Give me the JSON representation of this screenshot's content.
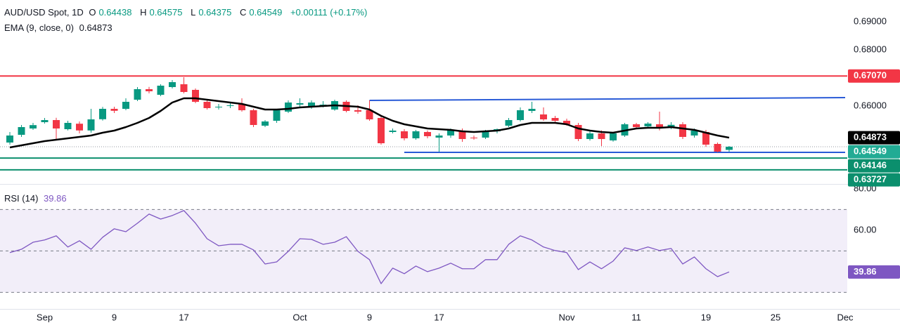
{
  "chart_data": [
    {
      "type": "candlestick",
      "header": {
        "symbol": "AUD/USD Spot, 1D",
        "labels": [
          "O",
          "H",
          "L",
          "C"
        ],
        "change": "+0.00111 (+0.17%)"
      },
      "categories": [
        null,
        null,
        null,
        "Sep",
        null,
        null,
        null,
        null,
        null,
        "9",
        null,
        null,
        null,
        null,
        null,
        "17",
        null,
        null,
        null,
        null,
        null,
        null,
        null,
        null,
        null,
        "Oct",
        null,
        null,
        null,
        null,
        null,
        "9",
        null,
        null,
        null,
        null,
        null,
        "17",
        null,
        null,
        null,
        null,
        null,
        null,
        null,
        null,
        null,
        null,
        "Nov",
        null,
        null,
        null,
        null,
        null,
        "11",
        null,
        null,
        null,
        null,
        null,
        "19",
        null,
        null,
        null,
        null,
        null,
        "25",
        null,
        null,
        null,
        null,
        null,
        "Dec"
      ],
      "open": [
        0.647,
        0.64975,
        0.652,
        0.65425,
        0.655,
        0.65175,
        0.6537,
        0.6513,
        0.6553,
        0.659,
        0.659,
        0.66225,
        0.666,
        0.664,
        0.66675,
        0.66775,
        0.66575,
        0.6615,
        0.6595,
        0.66,
        0.66075,
        0.6585,
        0.653,
        0.65475,
        0.658,
        0.6605,
        0.6595,
        0.66,
        0.65875,
        0.6615,
        0.6585,
        0.6585,
        0.65575,
        0.65075,
        0.651,
        0.6485,
        0.65075,
        0.64875,
        0.6495,
        0.65125,
        0.64875,
        0.64875,
        0.651,
        0.653,
        0.655,
        0.65825,
        0.657,
        0.65575,
        0.65475,
        0.65325,
        0.64825,
        0.65025,
        0.64775,
        0.6495,
        0.6535,
        0.65275,
        0.6535,
        0.6525,
        0.6535,
        0.6495,
        0.65075,
        0.6465,
        0.64438,
        null,
        null,
        null,
        null,
        null,
        null,
        null,
        null,
        null,
        null
      ],
      "high": [
        0.65075,
        0.65325,
        0.654,
        0.65575,
        0.6558,
        0.65475,
        0.6545,
        0.659,
        0.6597,
        0.65975,
        0.66275,
        0.66675,
        0.6668,
        0.66775,
        0.66925,
        0.67025,
        0.66625,
        0.66225,
        0.66075,
        0.66125,
        0.66275,
        0.659,
        0.655,
        0.659,
        0.662,
        0.66275,
        0.662,
        0.66175,
        0.66225,
        0.662,
        0.66025,
        0.662,
        0.65625,
        0.652,
        0.65175,
        0.6515,
        0.6513,
        0.65025,
        0.652,
        0.652,
        0.6495,
        0.6515,
        0.652,
        0.65575,
        0.6595,
        0.6615,
        0.6595,
        0.6565,
        0.6555,
        0.654,
        0.651,
        0.6513,
        0.65075,
        0.654,
        0.654,
        0.65425,
        0.658,
        0.65425,
        0.65425,
        0.652,
        0.6515,
        0.647,
        0.64575,
        null,
        null,
        null,
        null,
        null,
        null,
        null,
        null,
        null,
        null
      ],
      "low": [
        0.64625,
        0.649,
        0.6515,
        0.65375,
        0.64825,
        0.6513,
        0.65025,
        0.6505,
        0.6548,
        0.6575,
        0.6585,
        0.66175,
        0.6645,
        0.6635,
        0.66625,
        0.6645,
        0.661,
        0.65875,
        0.65875,
        0.65925,
        0.658,
        0.6525,
        0.6525,
        0.654,
        0.6575,
        0.65975,
        0.659,
        0.6595,
        0.6583,
        0.65775,
        0.65725,
        0.65475,
        0.64625,
        0.65025,
        0.64775,
        0.648,
        0.6485,
        0.64375,
        0.6487,
        0.64725,
        0.648,
        0.64825,
        0.65025,
        0.6525,
        0.6545,
        0.6575,
        0.65475,
        0.654,
        0.653,
        0.6475,
        0.6477,
        0.64575,
        0.6473,
        0.649,
        0.652,
        0.652,
        0.6513,
        0.65175,
        0.64825,
        0.64875,
        0.6455,
        0.6435,
        0.64375,
        null,
        null,
        null,
        null,
        null,
        null,
        null,
        null,
        null,
        null
      ],
      "close": [
        0.6495,
        0.6525,
        0.6532,
        0.655,
        0.652,
        0.654,
        0.6513,
        0.65525,
        0.659,
        0.6583,
        0.6615,
        0.666,
        0.66525,
        0.66725,
        0.6685,
        0.665,
        0.6615,
        0.65925,
        0.65975,
        0.66025,
        0.6585,
        0.65325,
        0.6545,
        0.6585,
        0.66125,
        0.661,
        0.66125,
        0.6605,
        0.66175,
        0.65825,
        0.658,
        0.65525,
        0.64675,
        0.65125,
        0.6485,
        0.651,
        0.64925,
        0.6495,
        0.6515,
        0.64825,
        0.6485,
        0.65125,
        0.65175,
        0.655,
        0.6585,
        0.659,
        0.65525,
        0.65475,
        0.6535,
        0.64825,
        0.65025,
        0.64825,
        0.65025,
        0.6535,
        0.6525,
        0.65375,
        0.65225,
        0.6533,
        0.649,
        0.65125,
        0.64625,
        0.64375,
        0.64549,
        null,
        null,
        null,
        null,
        null,
        null,
        null,
        null,
        null,
        null
      ],
      "up_color": "#089981",
      "down_color": "#f23645",
      "last_color": "#22ab94",
      "ema": {
        "name": "EMA (9, close, 0)",
        "color": "#000000",
        "values": [
          0.64525,
          0.646,
          0.64675,
          0.6475,
          0.648,
          0.6485,
          0.649,
          0.6495,
          0.6505,
          0.65125,
          0.6525,
          0.654,
          0.65575,
          0.65825,
          0.66125,
          0.66275,
          0.66275,
          0.66225,
          0.66175,
          0.66125,
          0.66075,
          0.65975,
          0.65875,
          0.65875,
          0.659,
          0.6595,
          0.65975,
          0.66,
          0.66025,
          0.66,
          0.65975,
          0.65875,
          0.6565,
          0.65475,
          0.6535,
          0.65275,
          0.652,
          0.65175,
          0.6515,
          0.651,
          0.65075,
          0.651,
          0.65125,
          0.652,
          0.65325,
          0.654,
          0.654,
          0.654,
          0.6535,
          0.652,
          0.65125,
          0.65075,
          0.6505,
          0.65125,
          0.652,
          0.65225,
          0.65225,
          0.6525,
          0.652,
          0.6515,
          0.6505,
          0.6495,
          0.64873,
          null,
          null,
          null,
          null,
          null,
          null,
          null,
          null,
          null,
          null
        ]
      },
      "ylim": [
        0.63225,
        0.69775
      ],
      "yticks": [
        {
          "value": 0.69,
          "label": "0.69000"
        },
        {
          "value": 0.68,
          "label": "0.68000"
        },
        {
          "value": 0.66,
          "label": "0.66000"
        }
      ],
      "levels": [
        {
          "value": 0.6707,
          "label": "0.67070",
          "color": "#f23645"
        },
        {
          "value": 0.64146,
          "color": "#0b8f6d"
        },
        {
          "value": 0.63727,
          "color": "#0b8f6d"
        }
      ],
      "trendlines": [
        {
          "x": [
            31,
            72
          ],
          "y": [
            0.662,
            0.663
          ],
          "color": "#2a5bd7"
        },
        {
          "x": [
            34,
            72
          ],
          "y": [
            0.6435,
            0.6435
          ],
          "color": "#2a5bd7"
        }
      ],
      "grid": false
    },
    {
      "type": "line",
      "title": "RSI (14)",
      "color": "#7e57c2",
      "values": [
        49.2,
        50.8,
        54.2,
        55.3,
        57.3,
        51.9,
        54.9,
        50.8,
        56.6,
        60.7,
        59.3,
        63.4,
        67.8,
        65.4,
        67.1,
        69.5,
        63.4,
        55.9,
        52.5,
        53.2,
        53.2,
        50.5,
        43.7,
        44.7,
        49.8,
        55.9,
        55.6,
        53.2,
        54.2,
        56.9,
        49.8,
        45.8,
        34.2,
        41.7,
        39,
        42.7,
        40,
        41.7,
        44.1,
        41.4,
        41.4,
        45.8,
        45.8,
        53.2,
        57.3,
        55.3,
        51.9,
        50.2,
        49.2,
        41,
        44.7,
        41.4,
        45.1,
        51.5,
        50.2,
        51.9,
        50.2,
        51.2,
        43.7,
        47.1,
        41.4,
        37.6,
        39.86,
        null,
        null,
        null,
        null,
        null,
        null,
        null,
        null,
        null,
        null
      ],
      "ylim": [
        22,
        82
      ],
      "yticks": [
        {
          "value": 80,
          "label": "80.00"
        },
        {
          "value": 60,
          "label": "60.00"
        }
      ],
      "bands": [
        70,
        50,
        30
      ]
    }
  ]
}
